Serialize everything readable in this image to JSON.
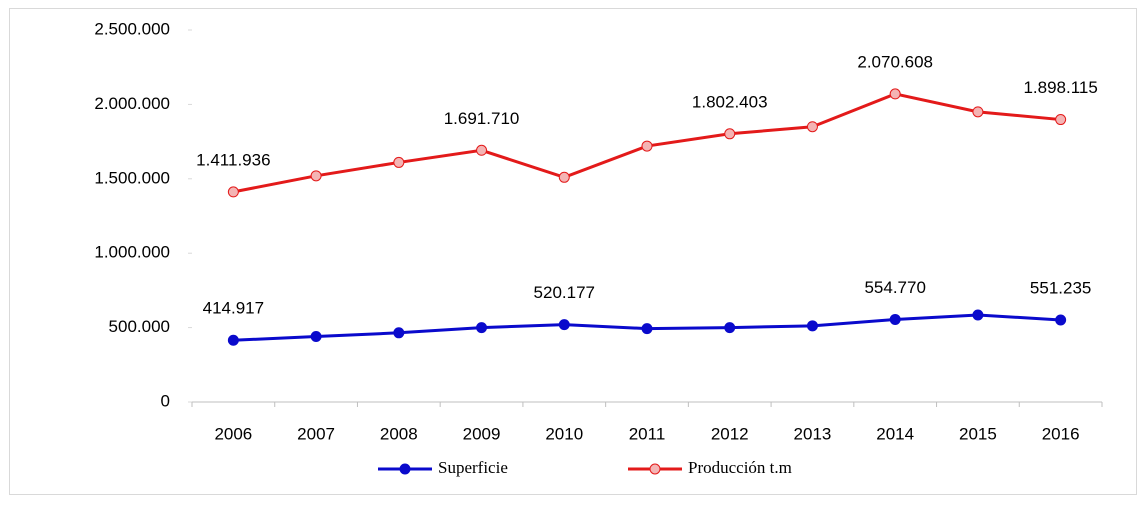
{
  "chart_data": {
    "type": "line",
    "categories": [
      "2006",
      "2007",
      "2008",
      "2009",
      "2010",
      "2011",
      "2012",
      "2013",
      "2014",
      "2015",
      "2016"
    ],
    "series": [
      {
        "name": "Superficie",
        "color": "#0a0acc",
        "marker_fill": "#0a0acc",
        "values": [
          414917,
          440000,
          465000,
          500000,
          520177,
          493000,
          500000,
          512000,
          554770,
          585000,
          551235
        ],
        "value_labels": [
          "414.917",
          null,
          null,
          null,
          "520.177",
          null,
          null,
          null,
          "554.770",
          null,
          "551.235"
        ]
      },
      {
        "name": "Producción t.m",
        "color": "#e31a1a",
        "marker_fill": "#f4b4b4",
        "values": [
          1411936,
          1520000,
          1610000,
          1691710,
          1510000,
          1720000,
          1802403,
          1850000,
          2070608,
          1950000,
          1898115
        ],
        "value_labels": [
          "1.411.936",
          null,
          null,
          "1.691.710",
          null,
          null,
          "1.802.403",
          null,
          "2.070.608",
          null,
          "1.898.115"
        ]
      }
    ],
    "ylim": [
      0,
      2500000
    ],
    "yticks": [
      0,
      {
        "value": 500000,
        "label": "500.000"
      },
      {
        "value": 1000000,
        "label": "1.000.000"
      },
      {
        "value": 1500000,
        "label": "1.500.000"
      },
      {
        "value": 2000000,
        "label": "2.000.000"
      },
      {
        "value": 2500000,
        "label": "2.500.000"
      }
    ],
    "grid": false,
    "legend": "bottom"
  }
}
